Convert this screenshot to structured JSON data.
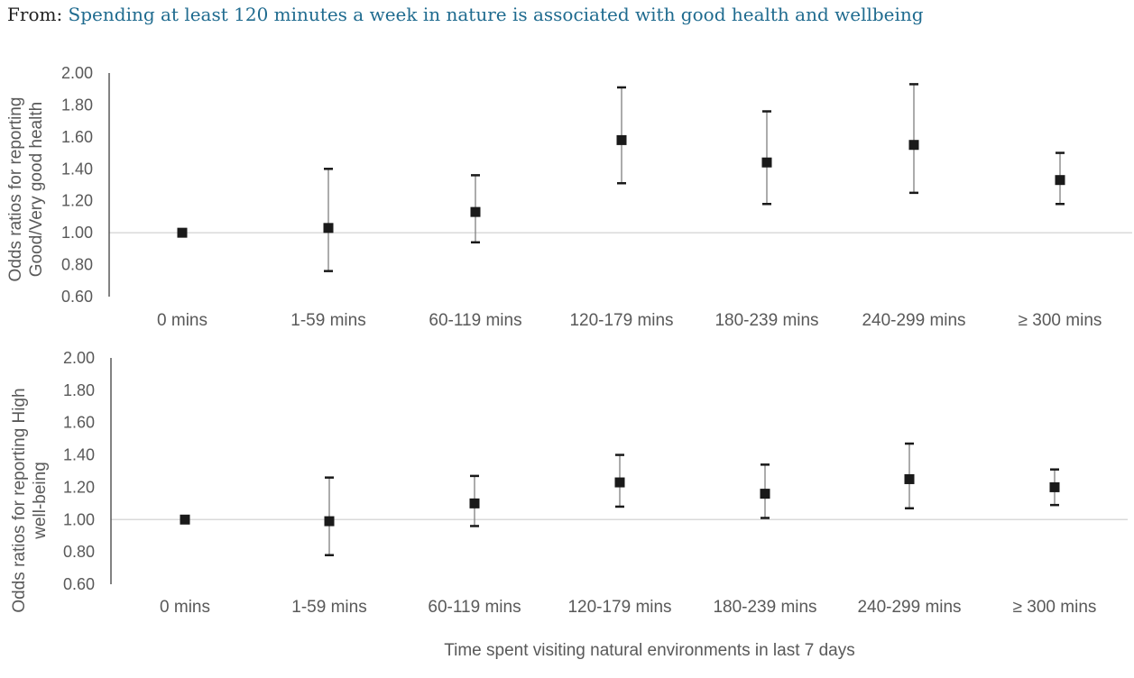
{
  "header": {
    "prefix": "From:",
    "title": "Spending at least 120 minutes a week in nature is associated with good health and wellbeing"
  },
  "colors": {
    "link": "#1f6b8f",
    "marker": "#1a1a1a",
    "axis": "#595959",
    "reference_line": "#d9d9d9"
  },
  "chart_data": [
    {
      "type": "scatter",
      "ylabel_lines": [
        "Odds ratios for reporting",
        "Good/Very good health"
      ],
      "ylim": [
        0.6,
        2.0
      ],
      "yticks": [
        "2.00",
        "1.80",
        "1.60",
        "1.40",
        "1.20",
        "1.00",
        "0.80",
        "0.60"
      ],
      "reference_y": 1.0,
      "categories": [
        "0 mins",
        "1-59 mins",
        "60-119 mins",
        "120-179 mins",
        "180-239 mins",
        "240-299 mins",
        "≥ 300 mins"
      ],
      "values": [
        1.0,
        1.03,
        1.13,
        1.58,
        1.44,
        1.55,
        1.33
      ],
      "ci_low": [
        null,
        0.76,
        0.94,
        1.31,
        1.18,
        1.25,
        1.18
      ],
      "ci_high": [
        null,
        1.4,
        1.36,
        1.91,
        1.76,
        1.93,
        1.5
      ]
    },
    {
      "type": "scatter",
      "ylabel_lines": [
        "Odds ratios for reporting High",
        "well-being"
      ],
      "xlabel": "Time spent visiting natural environments in last 7 days",
      "ylim": [
        0.6,
        2.0
      ],
      "yticks": [
        "2.00",
        "1.80",
        "1.60",
        "1.40",
        "1.20",
        "1.00",
        "0.80",
        "0.60"
      ],
      "reference_y": 1.0,
      "categories": [
        "0 mins",
        "1-59 mins",
        "60-119 mins",
        "120-179 mins",
        "180-239 mins",
        "240-299 mins",
        "≥ 300 mins"
      ],
      "values": [
        1.0,
        0.99,
        1.1,
        1.23,
        1.16,
        1.25,
        1.2
      ],
      "ci_low": [
        null,
        0.78,
        0.96,
        1.08,
        1.01,
        1.07,
        1.09
      ],
      "ci_high": [
        null,
        1.26,
        1.27,
        1.4,
        1.34,
        1.47,
        1.31
      ]
    }
  ]
}
